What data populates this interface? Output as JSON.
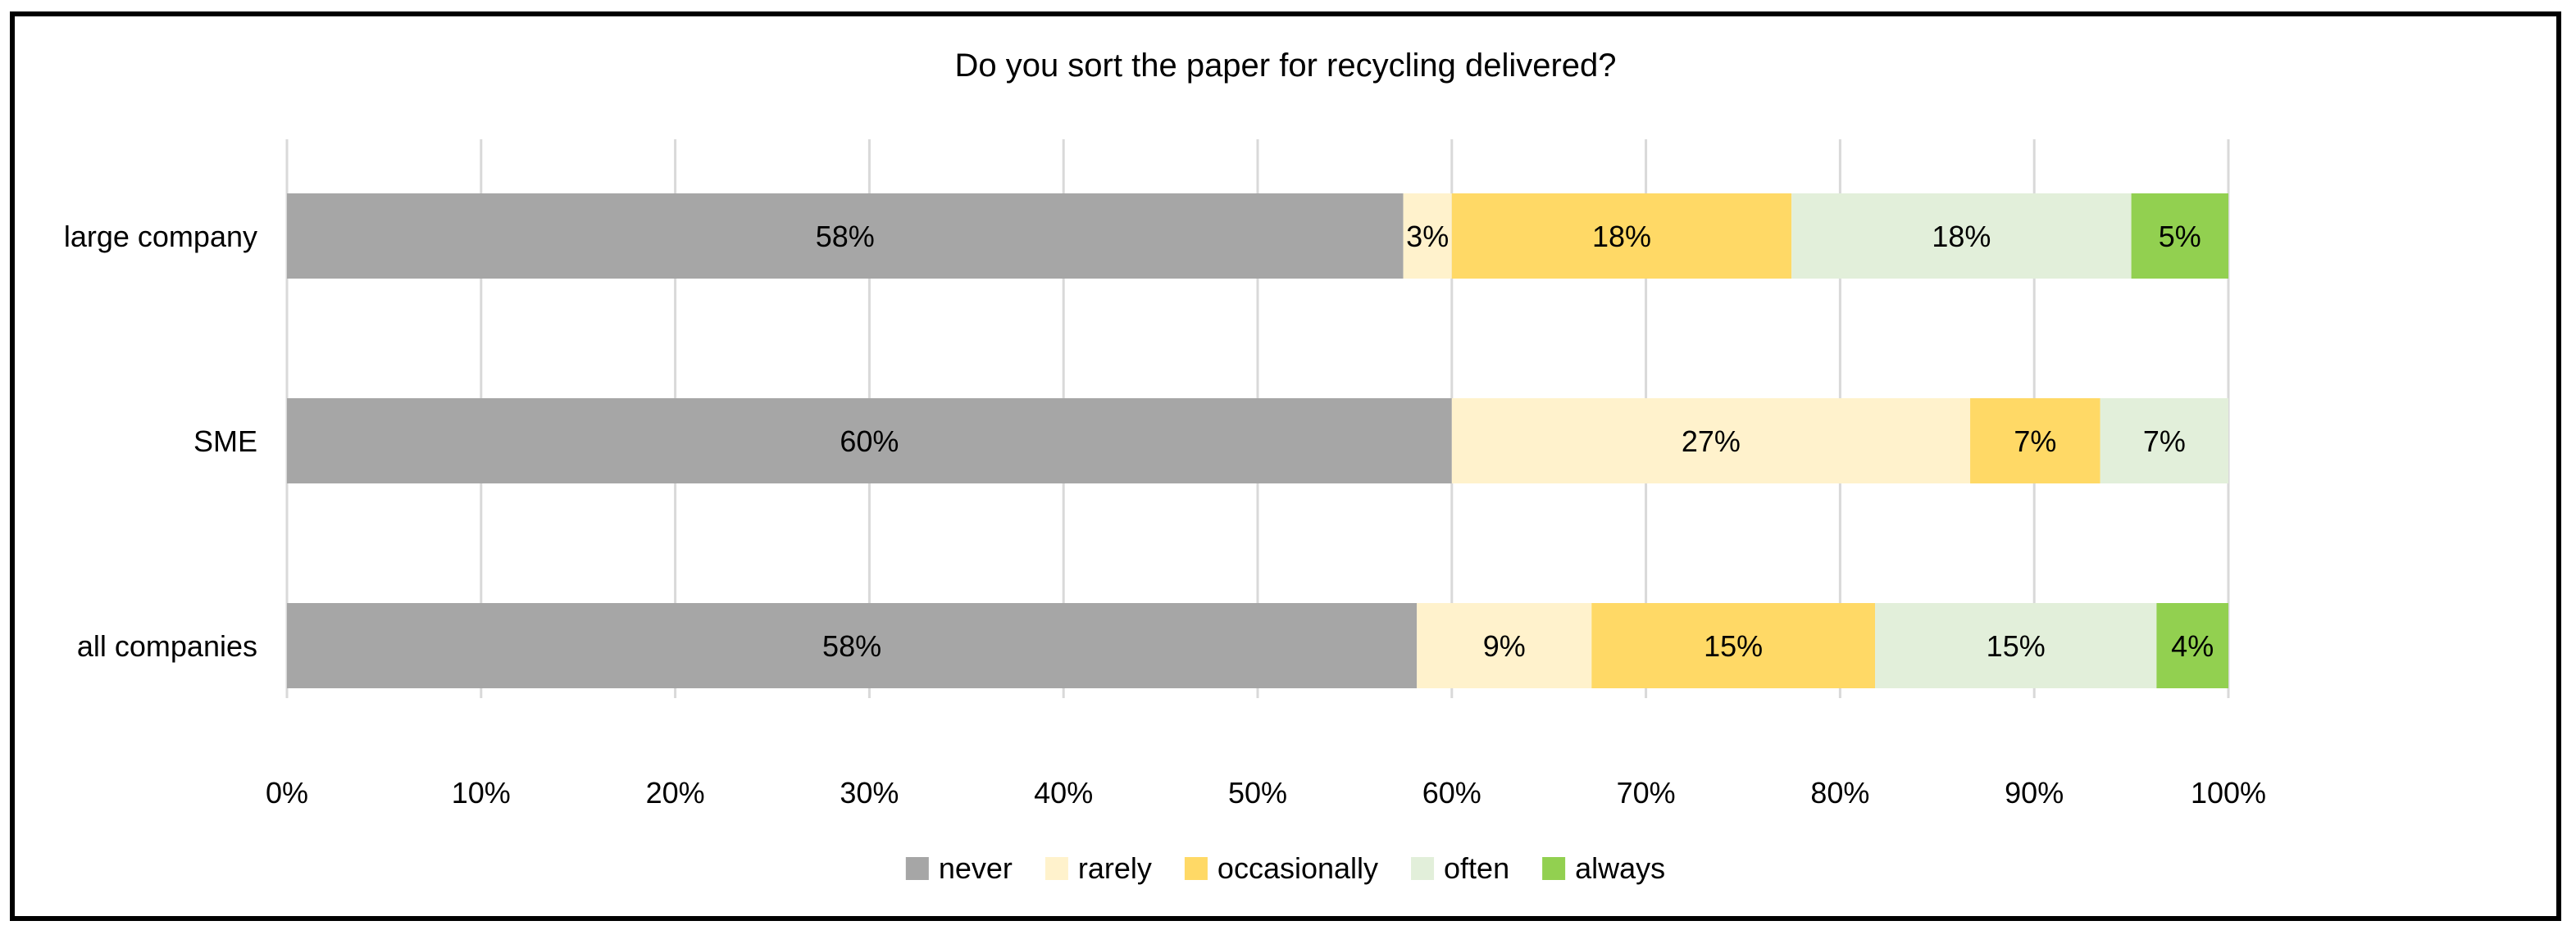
{
  "chart_data": {
    "type": "bar",
    "orientation": "horizontal",
    "stacked": true,
    "title": "Do you sort the paper for recycling delivered?",
    "categories": [
      "large company",
      "SME",
      "all companies"
    ],
    "series": [
      {
        "name": "never",
        "values": [
          57.5,
          60.0,
          58.2
        ],
        "labels": [
          "58%",
          "60%",
          "58%"
        ],
        "color": "#a6a6a6"
      },
      {
        "name": "rarely",
        "values": [
          2.5,
          26.7,
          9.0
        ],
        "labels": [
          "3%",
          "27%",
          "9%"
        ],
        "color": "#fff2cc"
      },
      {
        "name": "occasionally",
        "values": [
          17.5,
          6.7,
          14.6
        ],
        "labels": [
          "18%",
          "7%",
          "15%"
        ],
        "color": "#ffd966"
      },
      {
        "name": "often",
        "values": [
          17.5,
          6.6,
          14.5
        ],
        "labels": [
          "18%",
          "7%",
          "15%"
        ],
        "color": "#e2efda"
      },
      {
        "name": "always",
        "values": [
          5.0,
          0.0,
          3.7
        ],
        "labels": [
          "5%",
          "",
          "4%"
        ],
        "color": "#92d050"
      }
    ],
    "xticks": [
      "0%",
      "10%",
      "20%",
      "30%",
      "40%",
      "50%",
      "60%",
      "70%",
      "80%",
      "90%",
      "100%"
    ],
    "xlim": [
      0,
      100
    ],
    "grid": true,
    "legend_position": "bottom"
  }
}
